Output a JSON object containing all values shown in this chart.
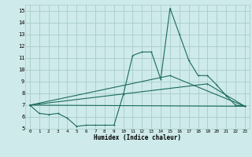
{
  "title": "",
  "xlabel": "Humidex (Indice chaleur)",
  "xlim": [
    -0.5,
    23.5
  ],
  "ylim": [
    5,
    15.5
  ],
  "yticks": [
    5,
    6,
    7,
    8,
    9,
    10,
    11,
    12,
    13,
    14,
    15
  ],
  "xticks": [
    0,
    1,
    2,
    3,
    4,
    5,
    6,
    7,
    8,
    9,
    10,
    11,
    12,
    13,
    14,
    15,
    16,
    17,
    18,
    19,
    20,
    21,
    22,
    23
  ],
  "bg_color": "#ceeaea",
  "grid_color": "#a8cccc",
  "line_color": "#1a6b5a",
  "line1_x": [
    0,
    1,
    2,
    3,
    4,
    5,
    6,
    7,
    8,
    9,
    10,
    11,
    12,
    13,
    14,
    15,
    16,
    17,
    18,
    19,
    20,
    21,
    22,
    23
  ],
  "line1_y": [
    7.0,
    6.3,
    6.2,
    6.3,
    5.9,
    5.2,
    5.3,
    5.3,
    5.3,
    5.3,
    7.9,
    11.2,
    11.5,
    11.5,
    9.2,
    15.2,
    13.0,
    10.8,
    9.5,
    9.5,
    8.7,
    7.8,
    7.0,
    6.9
  ],
  "line2_x": [
    0,
    23
  ],
  "line2_y": [
    7.0,
    6.9
  ],
  "line3_x": [
    0,
    15,
    23
  ],
  "line3_y": [
    7.0,
    9.5,
    6.9
  ],
  "line4_x": [
    0,
    19,
    23
  ],
  "line4_y": [
    7.0,
    8.8,
    6.9
  ]
}
